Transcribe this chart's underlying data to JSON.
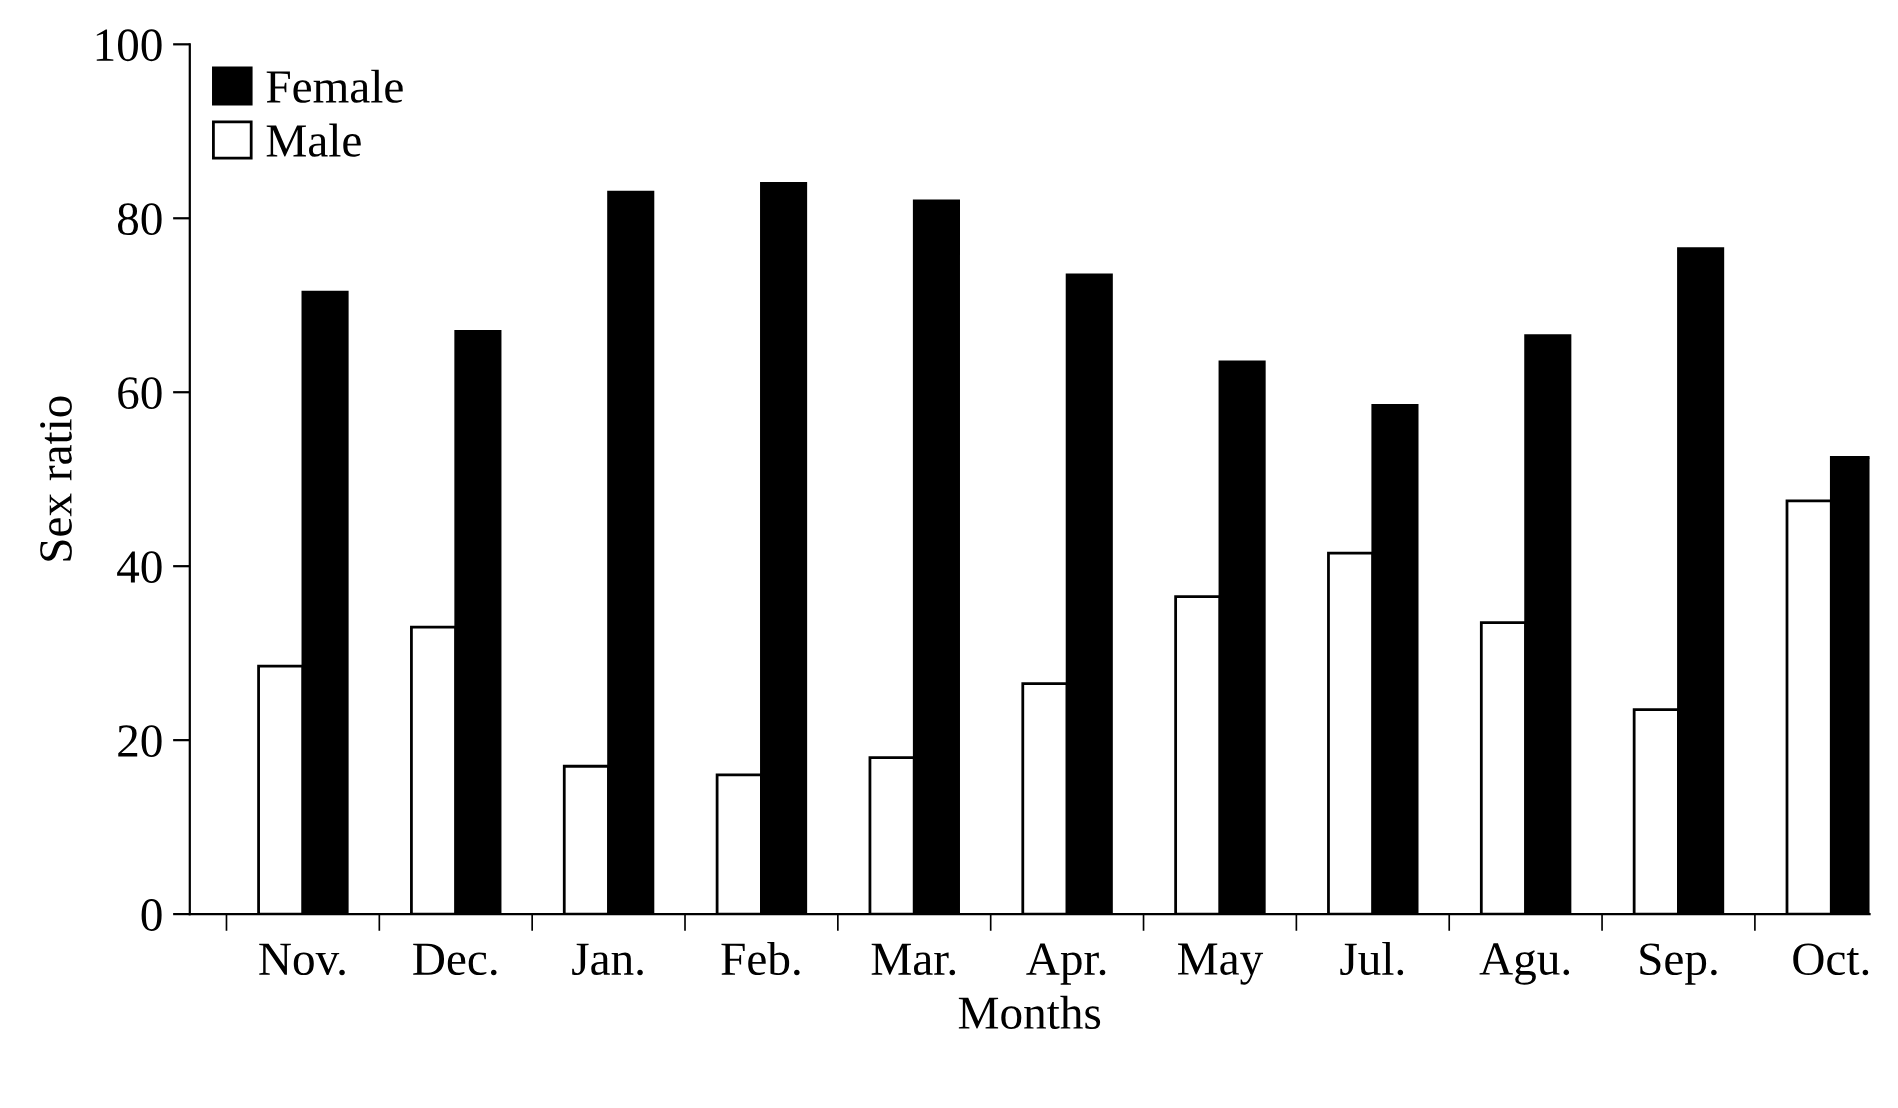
{
  "chart_data": {
    "type": "bar",
    "xlabel": "Months",
    "ylabel": "Sex ratio",
    "categories": [
      "Nov.",
      "Dec.",
      "Jan.",
      "Feb.",
      "Mar.",
      "Apr.",
      "May",
      "Jul.",
      "Agu.",
      "Sep.",
      "Oct."
    ],
    "series": [
      {
        "name": "Male",
        "color": "#ffffff",
        "values": [
          28.5,
          33,
          17,
          16,
          18,
          26.5,
          36.5,
          41.5,
          33.5,
          23.5,
          47.5
        ]
      },
      {
        "name": "Female",
        "color": "#000000",
        "values": [
          71.5,
          67,
          83,
          84,
          82,
          73.5,
          63.5,
          58.5,
          66.5,
          76.5,
          52.5
        ]
      }
    ],
    "ylim": [
      0,
      100
    ],
    "yticks": [
      0,
      20,
      40,
      60,
      80,
      100
    ],
    "grid": false,
    "legend": "top left"
  }
}
